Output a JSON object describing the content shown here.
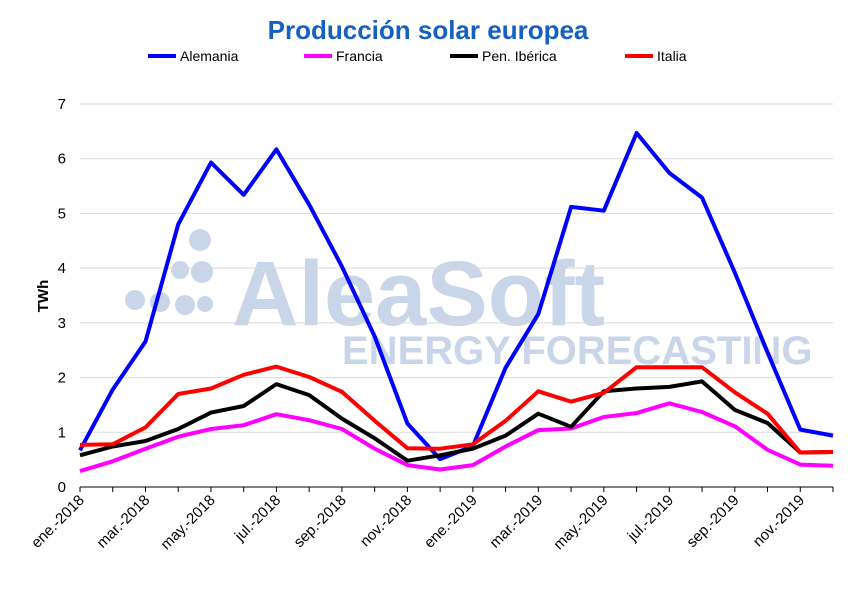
{
  "watermark": {
    "brand": "AleaSoft",
    "tagline": "ENERGY FORECASTING"
  },
  "chart_data": {
    "type": "line",
    "title": "Producción solar europea",
    "ylabel": "TWh",
    "xlabel": "",
    "ylim": [
      0,
      7
    ],
    "yticks": [
      0,
      1,
      2,
      3,
      4,
      5,
      6,
      7
    ],
    "grid": "horizontal",
    "legend": "top",
    "x": [
      "ene.-2018",
      "feb.-2018",
      "mar.-2018",
      "abr.-2018",
      "may.-2018",
      "jun.-2018",
      "jul.-2018",
      "ago.-2018",
      "sep.-2018",
      "oct.-2018",
      "nov.-2018",
      "dic.-2018",
      "ene.-2019",
      "feb.-2019",
      "mar.-2019",
      "abr.-2019",
      "may.-2019",
      "jun.-2019",
      "jul.-2019",
      "ago.-2019",
      "sep.-2019",
      "oct.-2019",
      "nov.-2019",
      "dic.-2019"
    ],
    "xtick_labels": [
      "ene.-2018",
      "mar.-2018",
      "may.-2018",
      "jul.-2018",
      "sep.-2018",
      "nov.-2018",
      "ene.-2019",
      "mar.-2019",
      "may.-2019",
      "jul.-2019",
      "sep.-2019",
      "nov.-2019"
    ],
    "series": [
      {
        "name": "Alemania",
        "color": "#0000ff",
        "values": [
          0.67,
          1.78,
          2.66,
          4.8,
          5.93,
          5.34,
          6.17,
          5.16,
          4.03,
          2.75,
          1.16,
          0.51,
          0.75,
          2.18,
          3.16,
          5.12,
          5.05,
          6.47,
          5.74,
          5.29,
          3.92,
          2.46,
          1.05,
          0.94
        ]
      },
      {
        "name": "Francia",
        "color": "#ff00ff",
        "values": [
          0.29,
          0.47,
          0.7,
          0.92,
          1.06,
          1.13,
          1.33,
          1.22,
          1.06,
          0.7,
          0.4,
          0.32,
          0.4,
          0.74,
          1.04,
          1.07,
          1.28,
          1.35,
          1.53,
          1.37,
          1.11,
          0.68,
          0.41,
          0.39
        ]
      },
      {
        "name": "Pen. Ibérica",
        "color": "#000000",
        "values": [
          0.58,
          0.74,
          0.84,
          1.06,
          1.36,
          1.48,
          1.88,
          1.68,
          1.25,
          0.89,
          0.48,
          0.58,
          0.7,
          0.94,
          1.34,
          1.1,
          1.75,
          1.8,
          1.83,
          1.93,
          1.41,
          1.17,
          0.63,
          0.64
        ]
      },
      {
        "name": "Italia",
        "color": "#ff0000",
        "values": [
          0.77,
          0.78,
          1.09,
          1.7,
          1.8,
          2.05,
          2.2,
          2.01,
          1.74,
          1.21,
          0.71,
          0.7,
          0.78,
          1.21,
          1.75,
          1.56,
          1.72,
          2.19,
          2.19,
          2.19,
          1.73,
          1.34,
          0.63,
          0.64
        ]
      }
    ]
  }
}
